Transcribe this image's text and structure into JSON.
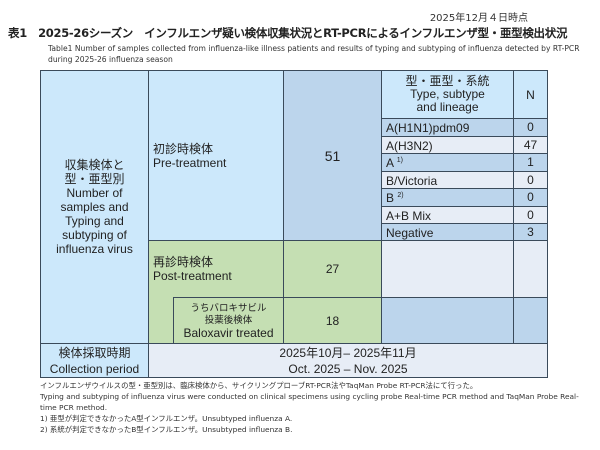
{
  "date": "2025年12月４日時点",
  "title": "表1　2025-26シーズン　インフルエンザ疑い検体収集状況とRT-PCRによるインフルエンザ型・亜型検出状況",
  "subtitle": "Table1 Number of samples collected from influenza-like illness patients and results of typing and subtyping of influenza detected by RT-PCR during 2025-26 influenza season",
  "table": {
    "row_header_jp": "収集検体と\n型・亜型別",
    "row_header_en": "Number of samples and Typing and subtyping of influenza virus",
    "type_header_jp": "型・亜型・系統",
    "type_header_en": "Type, subtype and lineage",
    "n_header": "N",
    "pre_jp": "初診時検体",
    "pre_en": "Pre-treatment",
    "pre_n": "51",
    "types": [
      {
        "label": "A(H1N1)pdm09",
        "sup": "",
        "n": "0"
      },
      {
        "label": "A(H3N2)",
        "sup": "",
        "n": "47"
      },
      {
        "label": "A",
        "sup": "1)",
        "n": "1"
      },
      {
        "label": "B/Victoria",
        "sup": "",
        "n": "0"
      },
      {
        "label": "B",
        "sup": "2)",
        "n": "0"
      },
      {
        "label": "A+B Mix",
        "sup": "",
        "n": "0"
      },
      {
        "label": "Negative",
        "sup": "",
        "n": "3"
      }
    ],
    "post_jp": "再診時検体",
    "post_en": "Post-treatment",
    "post_n": "27",
    "balox_jp1": "うちバロキサビル",
    "balox_jp2": "投薬後検体",
    "balox_en": "Baloxavir treated",
    "balox_n": "18",
    "period_jp": "検体採取時期",
    "period_en": "Collection period",
    "period_value_jp": "2025年10月– 2025年11月",
    "period_value_en": "Oct. 2025 – Nov. 2025"
  },
  "notes": [
    "インフルエンザウイルスの型・亜型別は、臨床検体から、サイクリングプローブRT-PCR法やTaqMan Probe RT-PCR法にて行った。",
    "Typing and subtyping of influenza virus were conducted on clinical specimens using cycling probe Real-time PCR method and TaqMan Probe Real-time PCR method.",
    "1) 亜型が判定できなかったA型インフルエンザ。Unsubtyped influenza A.",
    "2) 系統が判定できなかったB型インフルエンザ。Unsubtyped influenza B."
  ]
}
